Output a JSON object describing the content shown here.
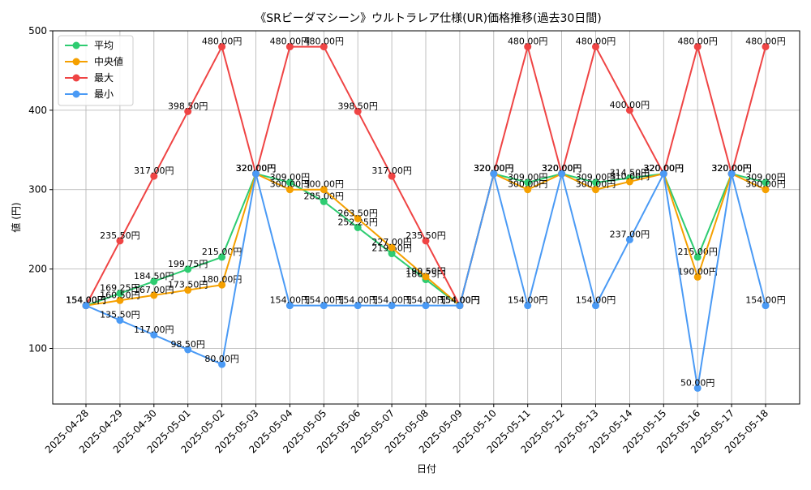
{
  "chart_data": {
    "type": "line",
    "title": "《SRビーダマシーン》ウルトラレア仕様(UR)価格推移(過去30日間)",
    "xlabel": "日付",
    "ylabel": "値 (円)",
    "ylim": [
      30,
      500
    ],
    "yticks": [
      100,
      200,
      300,
      400,
      500
    ],
    "grid": true,
    "legend_position": "top-left",
    "label_suffix": "円",
    "categories": [
      "2025-04-28",
      "2025-04-29",
      "2025-04-30",
      "2025-05-01",
      "2025-05-02",
      "2025-05-03",
      "2025-05-04",
      "2025-05-05",
      "2025-05-06",
      "2025-05-07",
      "2025-05-08",
      "2025-05-09",
      "2025-05-10",
      "2025-05-11",
      "2025-05-12",
      "2025-05-13",
      "2025-05-14",
      "2025-05-15",
      "2025-05-16",
      "2025-05-17",
      "2025-05-18"
    ],
    "series": [
      {
        "name": "平均",
        "color": "#2ecc71",
        "values": [
          154.0,
          169.25,
          184.5,
          199.75,
          215.0,
          320.0,
          309.0,
          285.0,
          252.25,
          219.5,
          186.75,
          154.0,
          320.0,
          309.0,
          320.0,
          309.0,
          314.5,
          320.0,
          215.0,
          320.0,
          309.0
        ]
      },
      {
        "name": "中央値",
        "color": "#f5a000",
        "values": [
          154.0,
          160.5,
          167.0,
          173.5,
          180.0,
          320.0,
          300.0,
          300.0,
          263.5,
          227.0,
          190.5,
          154.0,
          320.0,
          300.0,
          320.0,
          300.0,
          310.0,
          320.0,
          190.0,
          320.0,
          300.0
        ]
      },
      {
        "name": "最大",
        "color": "#ef4444",
        "values": [
          154.0,
          235.5,
          317.0,
          398.5,
          480.0,
          320.0,
          480.0,
          480.0,
          398.5,
          317.0,
          235.5,
          154.0,
          320.0,
          480.0,
          320.0,
          480.0,
          400.0,
          320.0,
          480.0,
          320.0,
          480.0
        ]
      },
      {
        "name": "最小",
        "color": "#4a9af5",
        "values": [
          154.0,
          135.5,
          117.0,
          98.5,
          80.0,
          320.0,
          154.0,
          154.0,
          154.0,
          154.0,
          154.0,
          154.0,
          320.0,
          154.0,
          320.0,
          154.0,
          237.0,
          320.0,
          50.0,
          320.0,
          154.0
        ]
      }
    ]
  }
}
